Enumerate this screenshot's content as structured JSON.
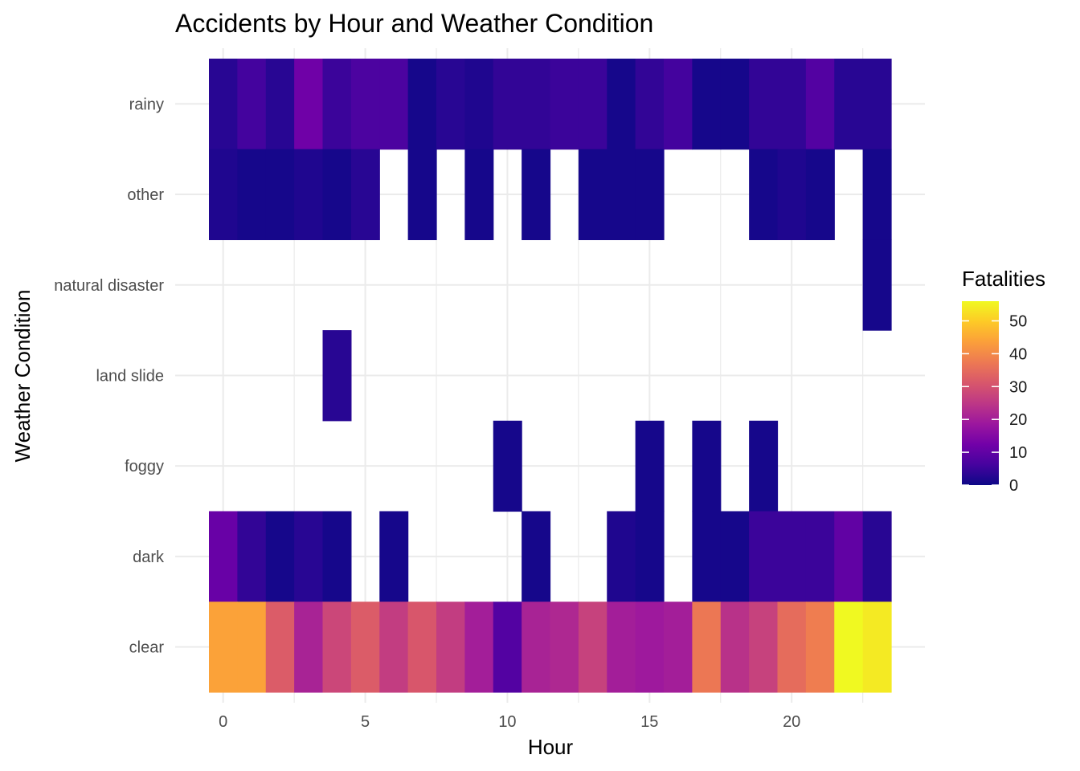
{
  "chart_data": {
    "type": "heatmap",
    "title": "Accidents by Hour and Weather Condition",
    "xlabel": "Hour",
    "ylabel": "Weather Condition",
    "x": [
      0,
      1,
      2,
      3,
      4,
      5,
      6,
      7,
      8,
      9,
      10,
      11,
      12,
      13,
      14,
      15,
      16,
      17,
      18,
      19,
      20,
      21,
      22,
      23
    ],
    "xlim": [
      -0.5,
      23.5
    ],
    "xticks": [
      0,
      5,
      10,
      15,
      20
    ],
    "categories": [
      "rainy",
      "other",
      "natural disaster",
      "land slide",
      "foggy",
      "dark",
      "clear"
    ],
    "series": [
      {
        "category": "rainy",
        "values": [
          3,
          6,
          3,
          12,
          5,
          7,
          7,
          1,
          3,
          2,
          4,
          4,
          5,
          5,
          1,
          4,
          6,
          1,
          1,
          4,
          4,
          8,
          3,
          3
        ]
      },
      {
        "category": "other",
        "values": [
          2,
          1,
          1,
          2,
          1,
          3,
          null,
          1,
          null,
          1,
          null,
          1,
          null,
          1,
          1,
          1,
          null,
          null,
          null,
          1,
          2,
          1,
          null,
          1
        ]
      },
      {
        "category": "natural disaster",
        "values": [
          null,
          null,
          null,
          null,
          null,
          null,
          null,
          null,
          null,
          null,
          null,
          null,
          null,
          null,
          null,
          null,
          null,
          null,
          null,
          null,
          null,
          null,
          null,
          1
        ]
      },
      {
        "category": "land slide",
        "values": [
          null,
          null,
          null,
          null,
          3,
          null,
          null,
          null,
          null,
          null,
          null,
          null,
          null,
          null,
          null,
          null,
          null,
          null,
          null,
          null,
          null,
          null,
          null,
          null
        ]
      },
      {
        "category": "foggy",
        "values": [
          null,
          null,
          null,
          null,
          null,
          null,
          null,
          null,
          null,
          null,
          1,
          null,
          null,
          null,
          null,
          1,
          null,
          1,
          null,
          1,
          null,
          null,
          null,
          null
        ]
      },
      {
        "category": "dark",
        "values": [
          11,
          4,
          1,
          3,
          1,
          null,
          1,
          null,
          null,
          null,
          null,
          1,
          null,
          null,
          2,
          1,
          null,
          1,
          1,
          5,
          5,
          5,
          10,
          3
        ]
      },
      {
        "category": "clear",
        "values": [
          44,
          44,
          32,
          21,
          28,
          32,
          26,
          31,
          26,
          20,
          8,
          21,
          22,
          27,
          20,
          19,
          20,
          37,
          24,
          27,
          35,
          38,
          56,
          54
        ]
      }
    ],
    "colorbar": {
      "title": "Fatalities",
      "ticks": [
        "0",
        "10",
        "20",
        "30",
        "40",
        "50"
      ],
      "min": 0,
      "max": 56,
      "palette": [
        "#0d0887",
        "#46039f",
        "#7201a8",
        "#9c179e",
        "#bd3786",
        "#d8576b",
        "#ed7953",
        "#fb9f3a",
        "#fdca26",
        "#f0f921"
      ]
    },
    "grid": true,
    "legend": "right"
  }
}
